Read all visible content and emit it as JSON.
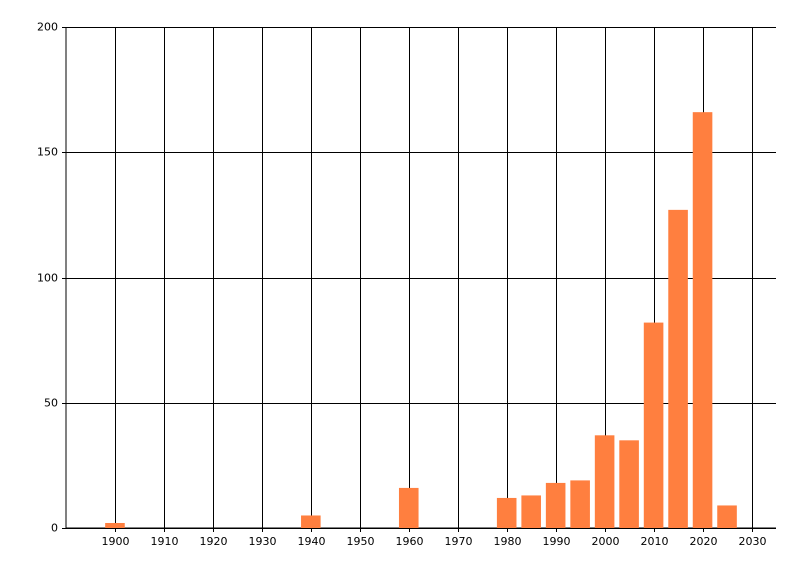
{
  "chart_data": {
    "type": "bar",
    "x": [
      1900,
      1940,
      1960,
      1980,
      1985,
      1990,
      1995,
      2000,
      2005,
      2010,
      2015,
      2020,
      2025
    ],
    "values": [
      2,
      5,
      16,
      12,
      13,
      18,
      19,
      37,
      35,
      82,
      127,
      166,
      9
    ],
    "color": "#ff7f3f",
    "xlim": [
      1890,
      2035
    ],
    "xticks": [
      1900,
      1910,
      1920,
      1930,
      1940,
      1950,
      1960,
      1970,
      1980,
      1990,
      2000,
      2010,
      2020,
      2030
    ],
    "ylim": [
      0,
      200
    ],
    "yticks": [
      0,
      50,
      100,
      150,
      200
    ],
    "grid": true
  }
}
